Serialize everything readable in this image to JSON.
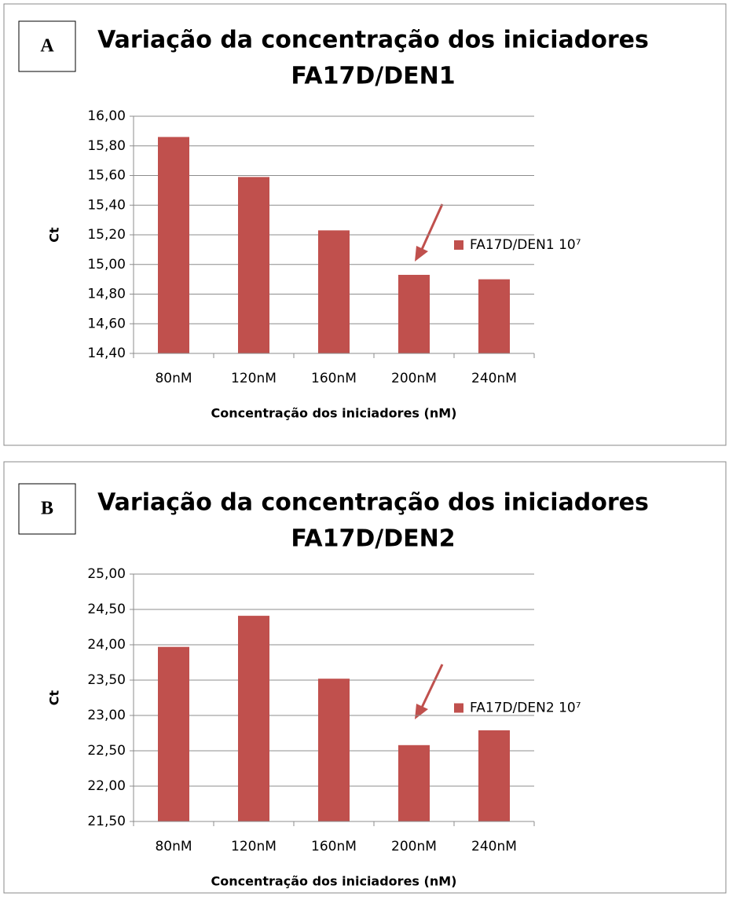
{
  "chart_data": [
    {
      "type": "bar",
      "panel_label": "A",
      "title": [
        "Variação da concentração dos iniciadores",
        "FA17D/DEN1"
      ],
      "y_label": "Ct",
      "x_label": "Concentração dos iniciadores (nM)",
      "categories": [
        "80nM",
        "120nM",
        "160nM",
        "200nM",
        "240nM"
      ],
      "series": [
        {
          "name": "FA17D/DEN1 10⁷",
          "color": "#c0504d",
          "values": [
            15.86,
            15.59,
            15.23,
            14.93,
            14.9
          ]
        }
      ],
      "ylim": [
        14.4,
        16.0
      ],
      "yticks": [
        {
          "value": 14.4,
          "label": "14,40"
        },
        {
          "value": 14.6,
          "label": "14,60"
        },
        {
          "value": 14.8,
          "label": "14,80"
        },
        {
          "value": 15.0,
          "label": "15,00"
        },
        {
          "value": 15.2,
          "label": "15,20"
        },
        {
          "value": 15.4,
          "label": "15,40"
        },
        {
          "value": 15.6,
          "label": "15,60"
        },
        {
          "value": 15.8,
          "label": "15,80"
        },
        {
          "value": 16.0,
          "label": "16,00"
        }
      ],
      "grid": true,
      "legend": "right"
    },
    {
      "type": "bar",
      "panel_label": "B",
      "title": [
        "Variação da concentração dos iniciadores",
        "FA17D/DEN2"
      ],
      "y_label": "Ct",
      "x_label": "Concentração dos iniciadores (nM)",
      "categories": [
        "80nM",
        "120nM",
        "160nM",
        "200nM",
        "240nM"
      ],
      "series": [
        {
          "name": "FA17D/DEN2 10⁷",
          "color": "#c0504d",
          "values": [
            23.97,
            24.41,
            23.52,
            22.58,
            22.79
          ]
        }
      ],
      "ylim": [
        21.5,
        25.0
      ],
      "yticks": [
        {
          "value": 21.5,
          "label": "21,50"
        },
        {
          "value": 22.0,
          "label": "22,00"
        },
        {
          "value": 22.5,
          "label": "22,50"
        },
        {
          "value": 23.0,
          "label": "23,00"
        },
        {
          "value": 23.5,
          "label": "23,50"
        },
        {
          "value": 24.0,
          "label": "24,00"
        },
        {
          "value": 24.5,
          "label": "24,50"
        },
        {
          "value": 25.0,
          "label": "25,00"
        }
      ],
      "grid": true,
      "legend": "right"
    }
  ]
}
